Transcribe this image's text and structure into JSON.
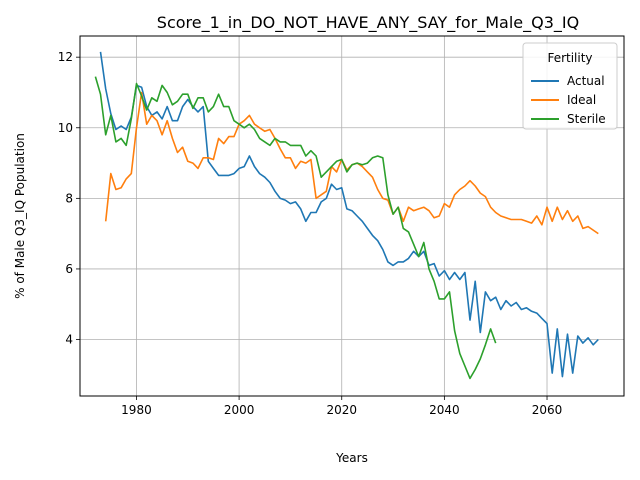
{
  "chart_data": {
    "type": "line",
    "title": "Score_1_in_DO_NOT_HAVE_ANY_SAY_for_Male_Q3_IQ",
    "xlabel": "Years",
    "ylabel": "% of Male Q3_IQ Population",
    "xlim": [
      1969,
      2075
    ],
    "ylim": [
      2.4,
      12.6
    ],
    "xticks": [
      1980,
      2000,
      2020,
      2040,
      2060
    ],
    "yticks": [
      4,
      6,
      8,
      10,
      12
    ],
    "grid": true,
    "legend": {
      "title": "Fertility",
      "position": "top-right"
    },
    "series": [
      {
        "name": "Actual",
        "color": "#1f77b4",
        "x": [
          1973,
          1974,
          1975,
          1976,
          1977,
          1978,
          1979,
          1980,
          1981,
          1982,
          1983,
          1984,
          1985,
          1986,
          1987,
          1988,
          1989,
          1990,
          1991,
          1992,
          1993,
          1994,
          1995,
          1996,
          1997,
          1998,
          1999,
          2000,
          2001,
          2002,
          2003,
          2004,
          2005,
          2006,
          2007,
          2008,
          2009,
          2010,
          2011,
          2012,
          2013,
          2014,
          2015,
          2016,
          2017,
          2018,
          2019,
          2020,
          2021,
          2022,
          2023,
          2024,
          2025,
          2026,
          2027,
          2028,
          2029,
          2030,
          2031,
          2032,
          2033,
          2034,
          2035,
          2036,
          2037,
          2038,
          2039,
          2040,
          2041,
          2042,
          2043,
          2044,
          2045,
          2046,
          2047,
          2048,
          2049,
          2050,
          2051,
          2052,
          2053,
          2054,
          2055,
          2056,
          2057,
          2058,
          2059,
          2060,
          2061,
          2062,
          2063,
          2064,
          2065,
          2066,
          2067,
          2068,
          2069,
          2070
        ],
        "y": [
          12.15,
          11.1,
          10.4,
          9.95,
          10.05,
          9.95,
          10.3,
          11.2,
          11.15,
          10.6,
          10.35,
          10.45,
          10.25,
          10.6,
          10.2,
          10.2,
          10.6,
          10.8,
          10.6,
          10.45,
          10.6,
          9.05,
          8.85,
          8.65,
          8.65,
          8.65,
          8.7,
          8.85,
          8.9,
          9.2,
          8.9,
          8.7,
          8.6,
          8.45,
          8.2,
          8.0,
          7.95,
          7.85,
          7.9,
          7.7,
          7.35,
          7.6,
          7.6,
          7.9,
          8.0,
          8.4,
          8.25,
          8.3,
          7.7,
          7.65,
          7.5,
          7.35,
          7.15,
          6.95,
          6.8,
          6.55,
          6.2,
          6.1,
          6.2,
          6.2,
          6.3,
          6.5,
          6.35,
          6.5,
          6.1,
          6.15,
          5.8,
          5.95,
          5.7,
          5.9,
          5.7,
          5.9,
          4.55,
          5.65,
          4.2,
          5.35,
          5.1,
          5.2,
          4.85,
          5.1,
          4.95,
          5.05,
          4.85,
          4.9,
          4.8,
          4.75,
          4.6,
          4.45,
          3.05,
          4.3,
          2.95,
          4.15,
          3.05,
          4.1,
          3.9,
          4.05,
          3.85,
          4.0
        ]
      },
      {
        "name": "Ideal",
        "color": "#ff7f0e",
        "x": [
          1974,
          1975,
          1976,
          1977,
          1978,
          1979,
          1980,
          1981,
          1982,
          1983,
          1984,
          1985,
          1986,
          1987,
          1988,
          1989,
          1990,
          1991,
          1992,
          1993,
          1994,
          1995,
          1996,
          1997,
          1998,
          1999,
          2000,
          2001,
          2002,
          2003,
          2004,
          2005,
          2006,
          2007,
          2008,
          2009,
          2010,
          2011,
          2012,
          2013,
          2014,
          2015,
          2016,
          2017,
          2018,
          2019,
          2020,
          2021,
          2022,
          2023,
          2024,
          2025,
          2026,
          2027,
          2028,
          2029,
          2030,
          2031,
          2032,
          2033,
          2034,
          2035,
          2036,
          2037,
          2038,
          2039,
          2040,
          2041,
          2042,
          2043,
          2044,
          2045,
          2046,
          2047,
          2048,
          2049,
          2050,
          2051,
          2052,
          2053,
          2054,
          2055,
          2056,
          2057,
          2058,
          2059,
          2060,
          2061,
          2062,
          2063,
          2064,
          2065,
          2066,
          2067,
          2068,
          2069,
          2070
        ],
        "y": [
          7.35,
          8.7,
          8.25,
          8.3,
          8.55,
          8.7,
          10.0,
          11.0,
          10.1,
          10.35,
          10.2,
          9.8,
          10.2,
          9.7,
          9.3,
          9.45,
          9.05,
          9.0,
          8.85,
          9.15,
          9.15,
          9.1,
          9.7,
          9.55,
          9.75,
          9.75,
          10.1,
          10.2,
          10.35,
          10.1,
          10.0,
          9.9,
          9.95,
          9.7,
          9.4,
          9.15,
          9.15,
          8.85,
          9.05,
          9.0,
          9.1,
          8.0,
          8.1,
          8.2,
          8.9,
          8.75,
          9.1,
          8.8,
          8.95,
          9.0,
          8.9,
          8.75,
          8.6,
          8.25,
          8.0,
          7.95,
          7.55,
          7.75,
          7.35,
          7.75,
          7.65,
          7.7,
          7.75,
          7.65,
          7.45,
          7.5,
          7.85,
          7.75,
          8.1,
          8.25,
          8.35,
          8.5,
          8.35,
          8.15,
          8.05,
          7.75,
          7.6,
          7.5,
          7.45,
          7.4,
          7.4,
          7.4,
          7.35,
          7.3,
          7.5,
          7.25,
          7.75,
          7.35,
          7.75,
          7.4,
          7.65,
          7.35,
          7.5,
          7.15,
          7.2,
          7.1,
          7.0
        ]
      },
      {
        "name": "Sterile",
        "color": "#2ca02c",
        "x": [
          1972,
          1973,
          1974,
          1975,
          1976,
          1977,
          1978,
          1979,
          1980,
          1981,
          1982,
          1983,
          1984,
          1985,
          1986,
          1987,
          1988,
          1989,
          1990,
          1991,
          1992,
          1993,
          1994,
          1995,
          1996,
          1997,
          1998,
          1999,
          2000,
          2001,
          2002,
          2003,
          2004,
          2005,
          2006,
          2007,
          2008,
          2009,
          2010,
          2011,
          2012,
          2013,
          2014,
          2015,
          2016,
          2017,
          2018,
          2019,
          2020,
          2021,
          2022,
          2023,
          2024,
          2025,
          2026,
          2027,
          2028,
          2029,
          2030,
          2031,
          2032,
          2033,
          2034,
          2035,
          2036,
          2037,
          2038,
          2039,
          2040,
          2041,
          2042,
          2043,
          2044,
          2045,
          2046,
          2047,
          2048,
          2049,
          2050
        ],
        "y": [
          11.45,
          10.95,
          9.8,
          10.35,
          9.6,
          9.7,
          9.5,
          10.25,
          11.25,
          10.9,
          10.5,
          10.85,
          10.75,
          11.2,
          11.0,
          10.65,
          10.75,
          10.95,
          10.95,
          10.55,
          10.85,
          10.85,
          10.45,
          10.6,
          10.95,
          10.6,
          10.6,
          10.2,
          10.1,
          10.0,
          10.1,
          9.95,
          9.7,
          9.6,
          9.5,
          9.7,
          9.6,
          9.6,
          9.5,
          9.5,
          9.5,
          9.2,
          9.35,
          9.2,
          8.6,
          8.75,
          8.9,
          9.05,
          9.1,
          8.75,
          8.95,
          9.0,
          8.95,
          9.0,
          9.15,
          9.2,
          9.15,
          8.1,
          7.55,
          7.75,
          7.15,
          7.05,
          6.7,
          6.35,
          6.75,
          6.0,
          5.65,
          5.15,
          5.15,
          5.35,
          4.25,
          3.6,
          3.25,
          2.9,
          3.15,
          3.45,
          3.85,
          4.3,
          3.9
        ]
      }
    ]
  }
}
